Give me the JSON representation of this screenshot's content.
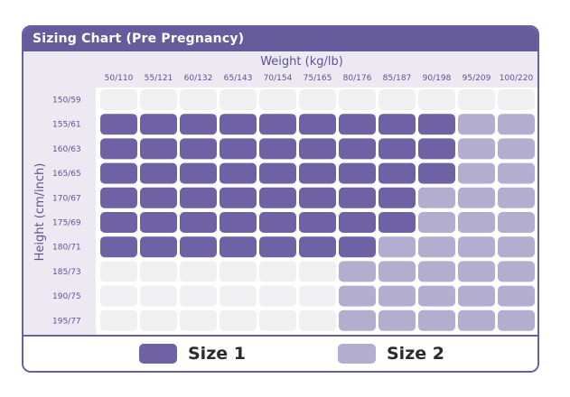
{
  "chart_data": {
    "type": "heatmap",
    "title": "Sizing Chart (Pre Pregnancy)",
    "xlabel": "Weight (kg/lb)",
    "ylabel": "Height (cm/inch)",
    "x_categories": [
      "50/110",
      "55/121",
      "60/132",
      "65/143",
      "70/154",
      "75/165",
      "80/176",
      "85/187",
      "90/198",
      "95/209",
      "100/220"
    ],
    "y_categories": [
      "150/59",
      "155/61",
      "160/63",
      "165/65",
      "170/67",
      "175/69",
      "180/71",
      "185/73",
      "190/75",
      "195/77"
    ],
    "values": [
      [
        0,
        0,
        0,
        0,
        0,
        0,
        0,
        0,
        0,
        0,
        0
      ],
      [
        1,
        1,
        1,
        1,
        1,
        1,
        1,
        1,
        1,
        2,
        2
      ],
      [
        1,
        1,
        1,
        1,
        1,
        1,
        1,
        1,
        1,
        2,
        2
      ],
      [
        1,
        1,
        1,
        1,
        1,
        1,
        1,
        1,
        1,
        2,
        2
      ],
      [
        1,
        1,
        1,
        1,
        1,
        1,
        1,
        1,
        2,
        2,
        2
      ],
      [
        1,
        1,
        1,
        1,
        1,
        1,
        1,
        1,
        2,
        2,
        2
      ],
      [
        1,
        1,
        1,
        1,
        1,
        1,
        1,
        2,
        2,
        2,
        2
      ],
      [
        0,
        0,
        0,
        0,
        0,
        0,
        2,
        2,
        2,
        2,
        2
      ],
      [
        0,
        0,
        0,
        0,
        0,
        0,
        2,
        2,
        2,
        2,
        2
      ],
      [
        0,
        0,
        0,
        0,
        0,
        0,
        2,
        2,
        2,
        2,
        2
      ]
    ],
    "value_meaning": {
      "0": "",
      "1": "Size 1",
      "2": "Size 2"
    },
    "legend": [
      {
        "label": "Size 1",
        "color": "#6e62a4"
      },
      {
        "label": "Size 2",
        "color": "#b3add0"
      }
    ],
    "colors": {
      "size1": "#6e62a4",
      "size2": "#b3add0",
      "empty": "#f0f0f2",
      "frame": "#665c9b",
      "band": "#ece9f3",
      "axis_text": "#5e5494"
    },
    "legend_placement": "bottom"
  }
}
